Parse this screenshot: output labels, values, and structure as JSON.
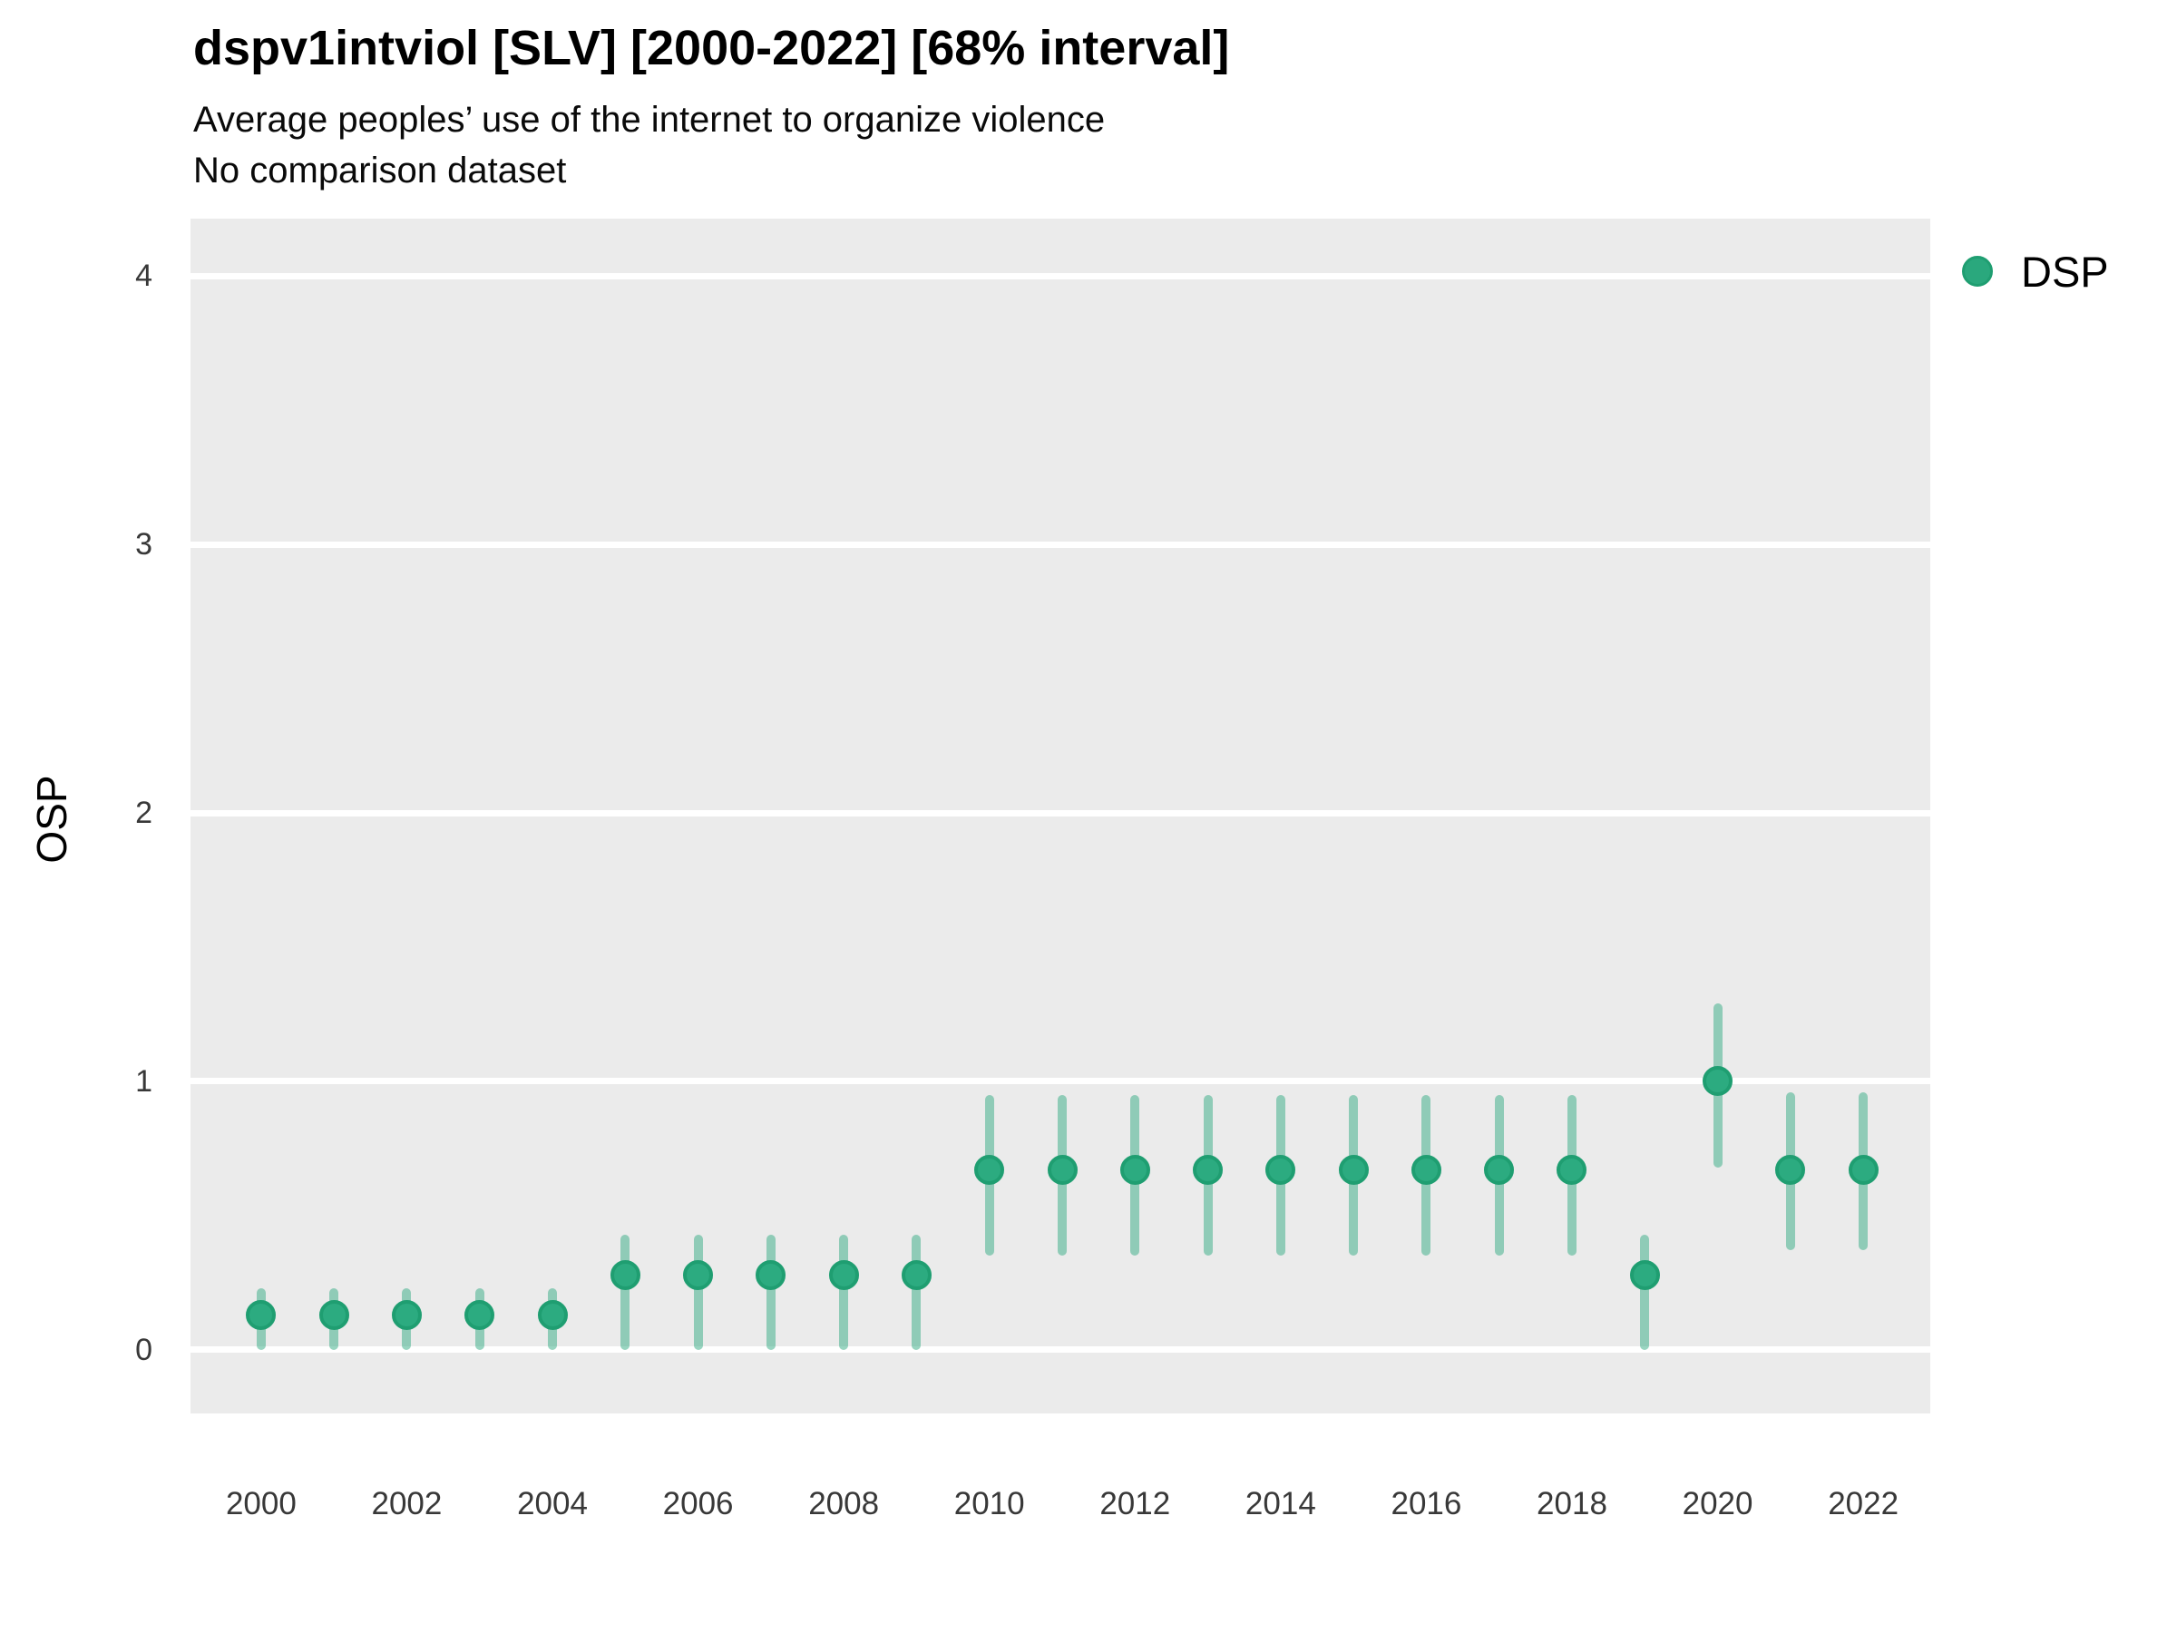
{
  "header": {
    "title": "dspv1intviol [SLV] [2000-2022] [68% interval]",
    "subtitle": "Average peoples’ use of the internet to organize violence",
    "note": "No comparison dataset"
  },
  "legend": {
    "items": [
      {
        "label": "DSP",
        "color": "#2aa87d"
      }
    ]
  },
  "chart_data": {
    "type": "pointrange",
    "title": "dspv1intviol [SLV] [2000-2022] [68% interval]",
    "subtitle": "Average peoples’ use of the internet to organize violence",
    "note": "No comparison dataset",
    "interval": "68%",
    "xlabel": "",
    "ylabel": "OSP",
    "ylim": [
      -0.237,
      4.214
    ],
    "xlim": [
      1999.03,
      2022.92
    ],
    "yticks": [
      0,
      1,
      2,
      3,
      4
    ],
    "xticks": [
      2000,
      2002,
      2004,
      2006,
      2008,
      2010,
      2012,
      2014,
      2016,
      2018,
      2020,
      2022
    ],
    "grid": "major horizontal, white lines on gray panel",
    "legend_position": "right-top",
    "panel_background": "#ebebeb",
    "series": [
      {
        "name": "DSP",
        "point_color": "#2cab80",
        "interval_color": "rgba(42,168,126,0.48)",
        "x": [
          2000,
          2001,
          2002,
          2003,
          2004,
          2005,
          2006,
          2007,
          2008,
          2009,
          2010,
          2011,
          2012,
          2013,
          2014,
          2015,
          2016,
          2017,
          2018,
          2019,
          2020,
          2021,
          2022
        ],
        "est": [
          0.13,
          0.13,
          0.13,
          0.13,
          0.13,
          0.28,
          0.28,
          0.28,
          0.28,
          0.28,
          0.67,
          0.67,
          0.67,
          0.67,
          0.67,
          0.67,
          0.67,
          0.67,
          0.67,
          0.28,
          1.0,
          0.67,
          0.67
        ],
        "lo": [
          0.0,
          0.0,
          0.0,
          0.0,
          0.0,
          0.0,
          0.0,
          0.0,
          0.0,
          0.0,
          0.35,
          0.35,
          0.35,
          0.35,
          0.35,
          0.35,
          0.35,
          0.35,
          0.35,
          0.0,
          0.68,
          0.37,
          0.37
        ],
        "hi": [
          0.23,
          0.23,
          0.23,
          0.23,
          0.23,
          0.43,
          0.43,
          0.43,
          0.43,
          0.43,
          0.95,
          0.95,
          0.95,
          0.95,
          0.95,
          0.95,
          0.95,
          0.95,
          0.95,
          0.43,
          1.29,
          0.96,
          0.96
        ]
      }
    ]
  }
}
